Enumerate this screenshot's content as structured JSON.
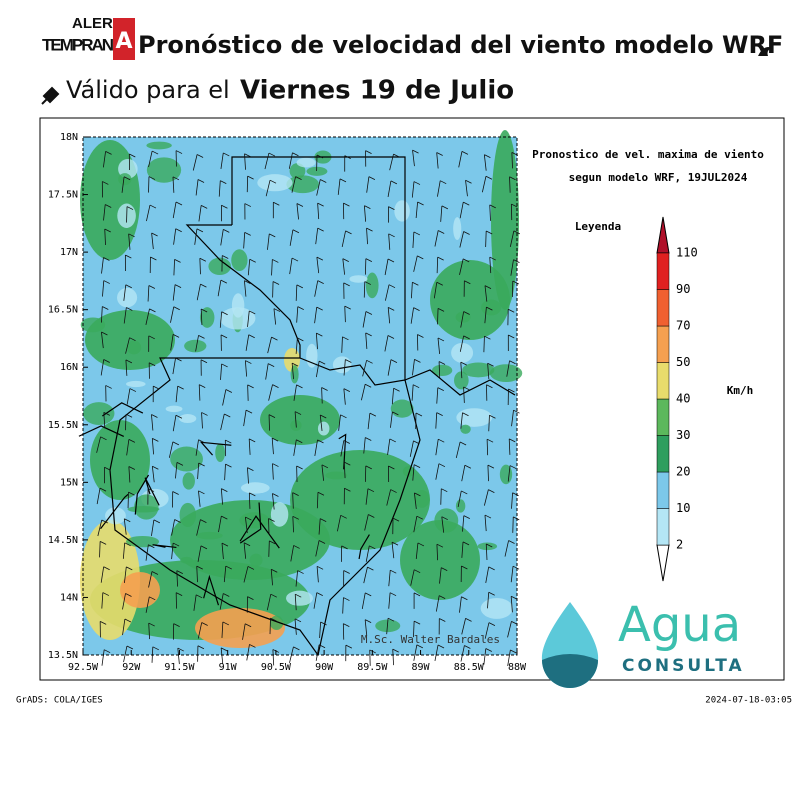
{
  "header": {
    "logo_top": "ALERT",
    "logo_bottom": "TEMPRAN",
    "logo_letter": "A",
    "title": "Pronóstico de velocidad del viento modelo WRF",
    "subtitle_prefix": "Válido para el",
    "subtitle_date": "Viernes 19 de Julio"
  },
  "map": {
    "title_line1": "Pronostico de vel. maxima de viento",
    "title_line2": "segun modelo WRF, 19JUL2024",
    "legend_title": "Leyenda",
    "legend_unit": "Km/h",
    "legend_levels": [
      "2",
      "10",
      "20",
      "30",
      "40",
      "50",
      "70",
      "90",
      "110"
    ],
    "lat_labels": [
      "18N",
      "17.5N",
      "17N",
      "16.5N",
      "16N",
      "15.5N",
      "15N",
      "14.5N",
      "14N",
      "13.5N"
    ],
    "lon_labels": [
      "92.5W",
      "92W",
      "91.5W",
      "91W",
      "90.5W",
      "90W",
      "89.5W",
      "89W",
      "88.5W",
      "88W"
    ],
    "credit": "M.Sc. Walter Bardales"
  },
  "brand": {
    "name": "Agua",
    "tagline": "CONSULTA"
  },
  "footer": {
    "left": "GrADS: COLA/IGES",
    "right": "2024-07-18-03:05"
  }
}
